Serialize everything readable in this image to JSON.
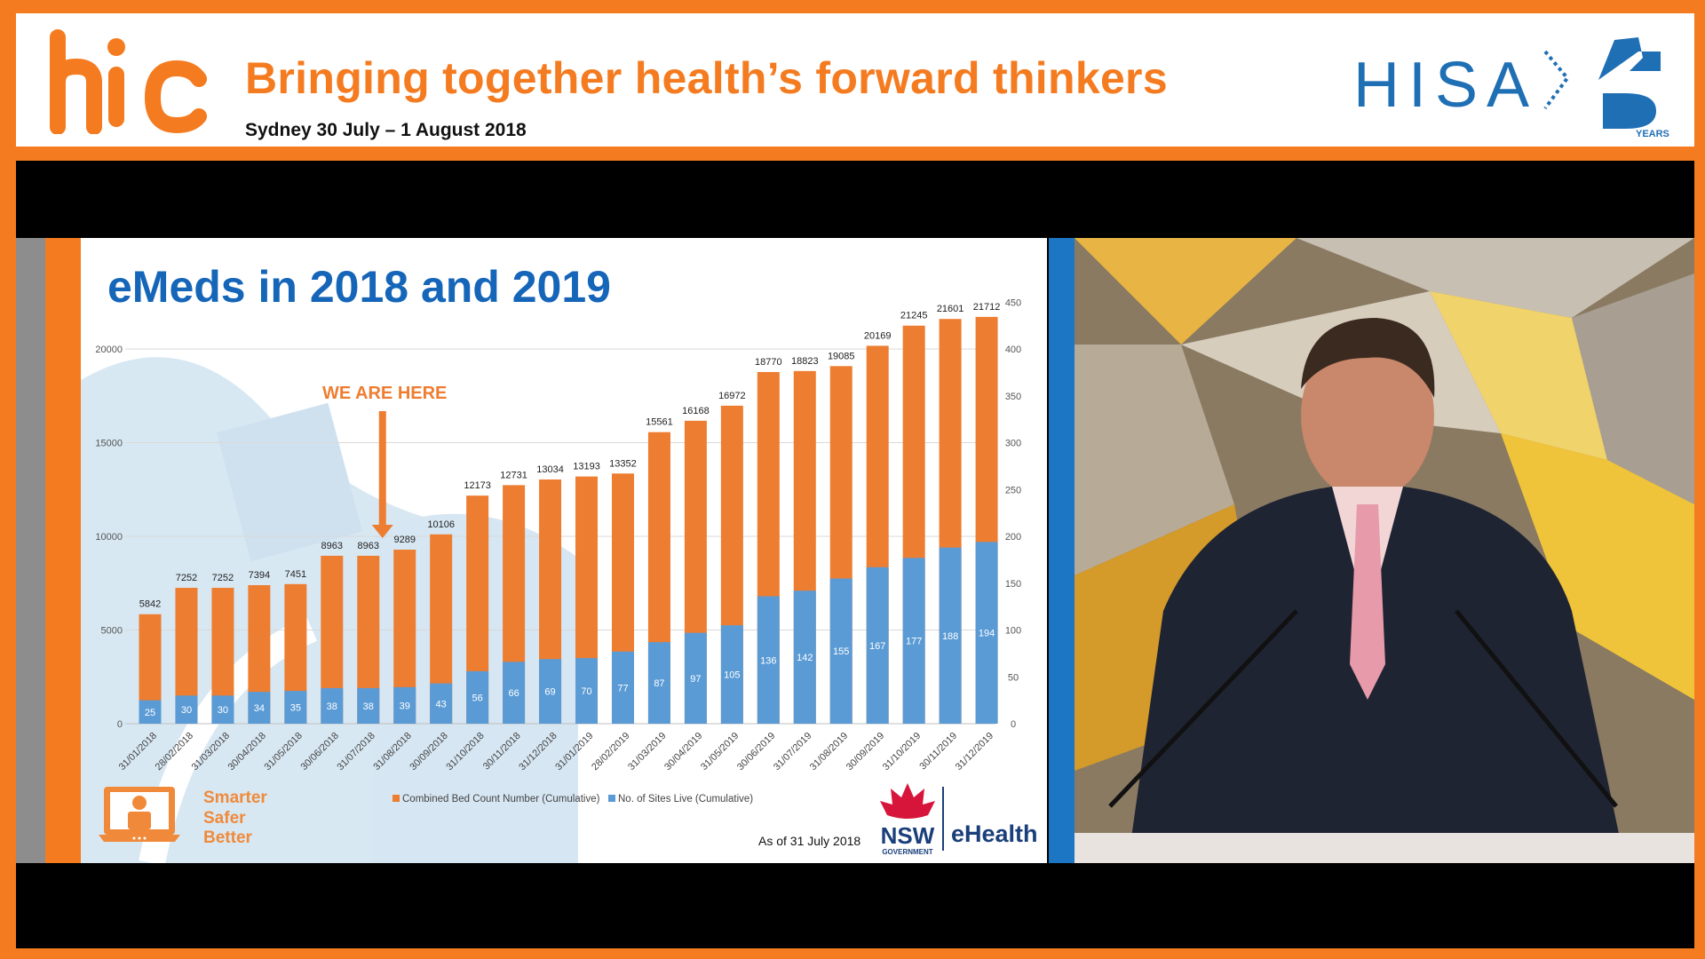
{
  "header": {
    "logo_text": "hic",
    "title": "Bringing together health’s forward thinkers",
    "subtitle": "Sydney 30 July – 1 August 2018",
    "partner_logo_text": "HISA",
    "partner_badge_text": "YEARS"
  },
  "slide": {
    "title": "eMeds in 2018 and 2019",
    "annotation": "WE ARE HERE",
    "tagline": [
      "Smarter",
      "Safer",
      "Better"
    ],
    "as_of": "As of 31 July 2018",
    "footer_logo_text": "NSW",
    "footer_logo_sub": "GOVERNMENT",
    "footer_brand": "eHealth"
  },
  "colors": {
    "brand_orange": "#f47b20",
    "bed_series": "#ed7d31",
    "sites_series": "#5b9bd5",
    "title_blue": "#1565b8",
    "divider_blue": "#1d76c4"
  },
  "chart_data": {
    "type": "bar",
    "categories": [
      "31/01/2018",
      "28/02/2018",
      "31/03/2018",
      "30/04/2018",
      "31/05/2018",
      "30/06/2018",
      "31/07/2018",
      "31/08/2018",
      "30/09/2018",
      "31/10/2018",
      "30/11/2018",
      "31/12/2018",
      "31/01/2019",
      "28/02/2019",
      "31/03/2019",
      "30/04/2019",
      "31/05/2019",
      "30/06/2019",
      "31/07/2019",
      "31/08/2019",
      "30/09/2019",
      "31/10/2019",
      "30/11/2019",
      "31/12/2019"
    ],
    "series": [
      {
        "name": "Combined Bed Count Number (Cumulative)",
        "axis": "left",
        "color": "#ed7d31",
        "values": [
          5842,
          7252,
          7252,
          7394,
          7451,
          8963,
          8963,
          9289,
          10106,
          12173,
          12731,
          13034,
          13193,
          13352,
          15561,
          16168,
          16972,
          18770,
          18823,
          19085,
          20169,
          21245,
          21601,
          21712
        ]
      },
      {
        "name": "No. of Sites Live (Cumulative)",
        "axis": "right",
        "color": "#5b9bd5",
        "values": [
          25,
          30,
          30,
          34,
          35,
          38,
          38,
          39,
          43,
          56,
          66,
          69,
          70,
          77,
          87,
          97,
          105,
          136,
          142,
          155,
          167,
          177,
          188,
          194
        ]
      }
    ],
    "y_left": {
      "range": [
        0,
        21100
      ],
      "ticks": [
        0,
        5000,
        10000,
        15000,
        20000
      ]
    },
    "y_right": {
      "range": [
        0,
        450
      ],
      "ticks": [
        0,
        50,
        100,
        150,
        200,
        250,
        300,
        350,
        400,
        450
      ]
    },
    "annotation_category": "31/07/2018",
    "grid": true,
    "legend": "bottom"
  }
}
